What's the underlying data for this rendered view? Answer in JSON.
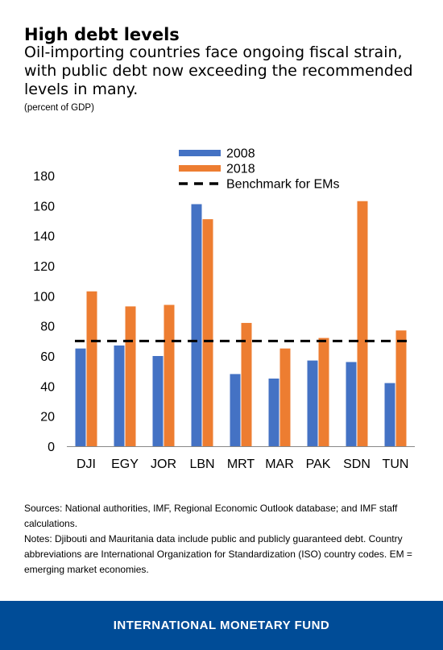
{
  "header": {
    "title": "High debt levels",
    "subtitle": "Oil-importing countries face ongoing fiscal strain, with public debt now exceeding the recommended levels in many.",
    "units": "(percent of GDP)"
  },
  "chart_data": {
    "type": "bar",
    "categories": [
      "DJI",
      "EGY",
      "JOR",
      "LBN",
      "MRT",
      "MAR",
      "PAK",
      "SDN",
      "TUN"
    ],
    "series": [
      {
        "name": "2008",
        "color": "#4472c4",
        "values": [
          65,
          67,
          60,
          161,
          48,
          45,
          57,
          56,
          42
        ]
      },
      {
        "name": "2018",
        "color": "#ed7d31",
        "values": [
          103,
          93,
          94,
          151,
          82,
          65,
          72,
          163,
          77
        ]
      }
    ],
    "benchmark": {
      "name": "Benchmark for EMs",
      "value": 70,
      "color": "#000000",
      "style": "dashed"
    },
    "ylim": [
      0,
      180
    ],
    "yticks": [
      0,
      20,
      40,
      60,
      80,
      100,
      120,
      140,
      160,
      180
    ],
    "grid": false,
    "legend_position": "top-center"
  },
  "notes": {
    "sources": "Sources: National authorities, IMF, Regional Economic Outlook database; and IMF staff calculations.",
    "notes": "Notes: Djibouti and Mauritania data include public and publicly guaranteed debt. Country abbreviations are International Organization for Standardization (ISO) country codes. EM = emerging market economies."
  },
  "footer": {
    "label": "INTERNATIONAL MONETARY FUND",
    "background": "#004c97"
  }
}
